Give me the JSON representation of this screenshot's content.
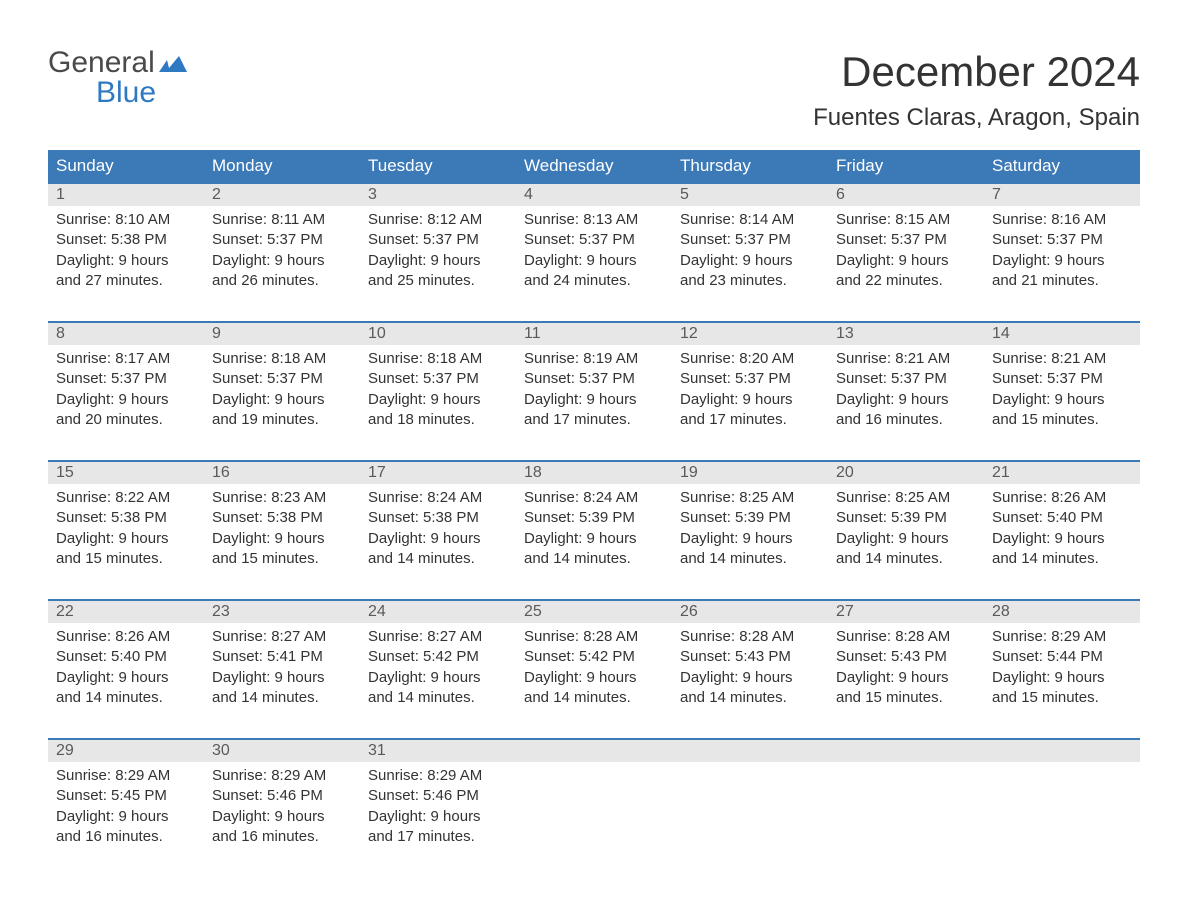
{
  "logo": {
    "general": "General",
    "blue": "Blue"
  },
  "title": "December 2024",
  "location": "Fuentes Claras, Aragon, Spain",
  "colors": {
    "header_bg": "#3b79b7",
    "header_text": "#ffffff",
    "daynum_bg": "#e7e7e7",
    "daynum_text": "#5a5a5a",
    "body_text": "#333333",
    "week_border": "#3b79b7",
    "logo_general": "#4a4a4a",
    "logo_blue": "#2f79c2",
    "background": "#ffffff"
  },
  "typography": {
    "title_fontsize": 42,
    "location_fontsize": 24,
    "dayname_fontsize": 17,
    "daynum_fontsize": 16,
    "cell_fontsize": 15,
    "logo_fontsize": 30
  },
  "daynames": [
    "Sunday",
    "Monday",
    "Tuesday",
    "Wednesday",
    "Thursday",
    "Friday",
    "Saturday"
  ],
  "weeks": [
    [
      {
        "n": "1",
        "sr": "Sunrise: 8:10 AM",
        "ss": "Sunset: 5:38 PM",
        "d1": "Daylight: 9 hours",
        "d2": "and 27 minutes."
      },
      {
        "n": "2",
        "sr": "Sunrise: 8:11 AM",
        "ss": "Sunset: 5:37 PM",
        "d1": "Daylight: 9 hours",
        "d2": "and 26 minutes."
      },
      {
        "n": "3",
        "sr": "Sunrise: 8:12 AM",
        "ss": "Sunset: 5:37 PM",
        "d1": "Daylight: 9 hours",
        "d2": "and 25 minutes."
      },
      {
        "n": "4",
        "sr": "Sunrise: 8:13 AM",
        "ss": "Sunset: 5:37 PM",
        "d1": "Daylight: 9 hours",
        "d2": "and 24 minutes."
      },
      {
        "n": "5",
        "sr": "Sunrise: 8:14 AM",
        "ss": "Sunset: 5:37 PM",
        "d1": "Daylight: 9 hours",
        "d2": "and 23 minutes."
      },
      {
        "n": "6",
        "sr": "Sunrise: 8:15 AM",
        "ss": "Sunset: 5:37 PM",
        "d1": "Daylight: 9 hours",
        "d2": "and 22 minutes."
      },
      {
        "n": "7",
        "sr": "Sunrise: 8:16 AM",
        "ss": "Sunset: 5:37 PM",
        "d1": "Daylight: 9 hours",
        "d2": "and 21 minutes."
      }
    ],
    [
      {
        "n": "8",
        "sr": "Sunrise: 8:17 AM",
        "ss": "Sunset: 5:37 PM",
        "d1": "Daylight: 9 hours",
        "d2": "and 20 minutes."
      },
      {
        "n": "9",
        "sr": "Sunrise: 8:18 AM",
        "ss": "Sunset: 5:37 PM",
        "d1": "Daylight: 9 hours",
        "d2": "and 19 minutes."
      },
      {
        "n": "10",
        "sr": "Sunrise: 8:18 AM",
        "ss": "Sunset: 5:37 PM",
        "d1": "Daylight: 9 hours",
        "d2": "and 18 minutes."
      },
      {
        "n": "11",
        "sr": "Sunrise: 8:19 AM",
        "ss": "Sunset: 5:37 PM",
        "d1": "Daylight: 9 hours",
        "d2": "and 17 minutes."
      },
      {
        "n": "12",
        "sr": "Sunrise: 8:20 AM",
        "ss": "Sunset: 5:37 PM",
        "d1": "Daylight: 9 hours",
        "d2": "and 17 minutes."
      },
      {
        "n": "13",
        "sr": "Sunrise: 8:21 AM",
        "ss": "Sunset: 5:37 PM",
        "d1": "Daylight: 9 hours",
        "d2": "and 16 minutes."
      },
      {
        "n": "14",
        "sr": "Sunrise: 8:21 AM",
        "ss": "Sunset: 5:37 PM",
        "d1": "Daylight: 9 hours",
        "d2": "and 15 minutes."
      }
    ],
    [
      {
        "n": "15",
        "sr": "Sunrise: 8:22 AM",
        "ss": "Sunset: 5:38 PM",
        "d1": "Daylight: 9 hours",
        "d2": "and 15 minutes."
      },
      {
        "n": "16",
        "sr": "Sunrise: 8:23 AM",
        "ss": "Sunset: 5:38 PM",
        "d1": "Daylight: 9 hours",
        "d2": "and 15 minutes."
      },
      {
        "n": "17",
        "sr": "Sunrise: 8:24 AM",
        "ss": "Sunset: 5:38 PM",
        "d1": "Daylight: 9 hours",
        "d2": "and 14 minutes."
      },
      {
        "n": "18",
        "sr": "Sunrise: 8:24 AM",
        "ss": "Sunset: 5:39 PM",
        "d1": "Daylight: 9 hours",
        "d2": "and 14 minutes."
      },
      {
        "n": "19",
        "sr": "Sunrise: 8:25 AM",
        "ss": "Sunset: 5:39 PM",
        "d1": "Daylight: 9 hours",
        "d2": "and 14 minutes."
      },
      {
        "n": "20",
        "sr": "Sunrise: 8:25 AM",
        "ss": "Sunset: 5:39 PM",
        "d1": "Daylight: 9 hours",
        "d2": "and 14 minutes."
      },
      {
        "n": "21",
        "sr": "Sunrise: 8:26 AM",
        "ss": "Sunset: 5:40 PM",
        "d1": "Daylight: 9 hours",
        "d2": "and 14 minutes."
      }
    ],
    [
      {
        "n": "22",
        "sr": "Sunrise: 8:26 AM",
        "ss": "Sunset: 5:40 PM",
        "d1": "Daylight: 9 hours",
        "d2": "and 14 minutes."
      },
      {
        "n": "23",
        "sr": "Sunrise: 8:27 AM",
        "ss": "Sunset: 5:41 PM",
        "d1": "Daylight: 9 hours",
        "d2": "and 14 minutes."
      },
      {
        "n": "24",
        "sr": "Sunrise: 8:27 AM",
        "ss": "Sunset: 5:42 PM",
        "d1": "Daylight: 9 hours",
        "d2": "and 14 minutes."
      },
      {
        "n": "25",
        "sr": "Sunrise: 8:28 AM",
        "ss": "Sunset: 5:42 PM",
        "d1": "Daylight: 9 hours",
        "d2": "and 14 minutes."
      },
      {
        "n": "26",
        "sr": "Sunrise: 8:28 AM",
        "ss": "Sunset: 5:43 PM",
        "d1": "Daylight: 9 hours",
        "d2": "and 14 minutes."
      },
      {
        "n": "27",
        "sr": "Sunrise: 8:28 AM",
        "ss": "Sunset: 5:43 PM",
        "d1": "Daylight: 9 hours",
        "d2": "and 15 minutes."
      },
      {
        "n": "28",
        "sr": "Sunrise: 8:29 AM",
        "ss": "Sunset: 5:44 PM",
        "d1": "Daylight: 9 hours",
        "d2": "and 15 minutes."
      }
    ],
    [
      {
        "n": "29",
        "sr": "Sunrise: 8:29 AM",
        "ss": "Sunset: 5:45 PM",
        "d1": "Daylight: 9 hours",
        "d2": "and 16 minutes."
      },
      {
        "n": "30",
        "sr": "Sunrise: 8:29 AM",
        "ss": "Sunset: 5:46 PM",
        "d1": "Daylight: 9 hours",
        "d2": "and 16 minutes."
      },
      {
        "n": "31",
        "sr": "Sunrise: 8:29 AM",
        "ss": "Sunset: 5:46 PM",
        "d1": "Daylight: 9 hours",
        "d2": "and 17 minutes."
      },
      null,
      null,
      null,
      null
    ]
  ]
}
